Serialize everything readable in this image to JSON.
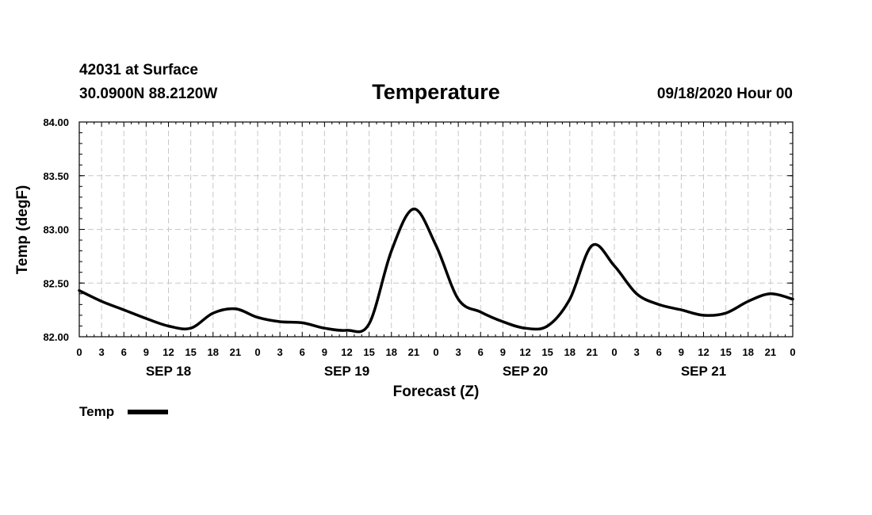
{
  "header": {
    "station": "42031 at Surface",
    "coords": "30.0900N 88.2120W",
    "run": "09/18/2020 Hour 00"
  },
  "chart_data": {
    "type": "line",
    "title": "Temperature",
    "xlabel": "Forecast (Z)",
    "ylabel": "Temp (degF)",
    "ylim": [
      82.0,
      84.0
    ],
    "xlim": [
      0,
      96
    ],
    "x_unit": "forecast hour",
    "y_ticks": [
      "82.00",
      "82.50",
      "83.00",
      "83.50",
      "84.00"
    ],
    "x_tick_labels": [
      "0",
      "3",
      "6",
      "9",
      "12",
      "15",
      "18",
      "21",
      "0",
      "3",
      "6",
      "9",
      "12",
      "15",
      "18",
      "21",
      "0",
      "3",
      "6",
      "9",
      "12",
      "15",
      "18",
      "21",
      "0",
      "3",
      "6",
      "9",
      "12",
      "15",
      "18",
      "21",
      "0"
    ],
    "day_labels": [
      {
        "label": "SEP 18",
        "hour": 12
      },
      {
        "label": "SEP 19",
        "hour": 36
      },
      {
        "label": "SEP 20",
        "hour": 60
      },
      {
        "label": "SEP 21",
        "hour": 84
      }
    ],
    "legend": [
      {
        "name": "Temp",
        "position": "bottom-left"
      }
    ],
    "series": [
      {
        "name": "Temp",
        "x": [
          0,
          3,
          6,
          9,
          12,
          15,
          18,
          21,
          24,
          27,
          30,
          33,
          36,
          39,
          42,
          45,
          48,
          51,
          54,
          57,
          60,
          63,
          66,
          69,
          72,
          75,
          78,
          81,
          84,
          87,
          90,
          93,
          96
        ],
        "values": [
          82.43,
          82.33,
          82.25,
          82.17,
          82.1,
          82.08,
          82.22,
          82.26,
          82.18,
          82.14,
          82.13,
          82.08,
          82.06,
          82.12,
          82.8,
          83.19,
          82.85,
          82.35,
          82.23,
          82.14,
          82.08,
          82.1,
          82.35,
          82.85,
          82.66,
          82.4,
          82.3,
          82.25,
          82.2,
          82.22,
          82.33,
          82.4,
          82.35
        ]
      }
    ]
  }
}
